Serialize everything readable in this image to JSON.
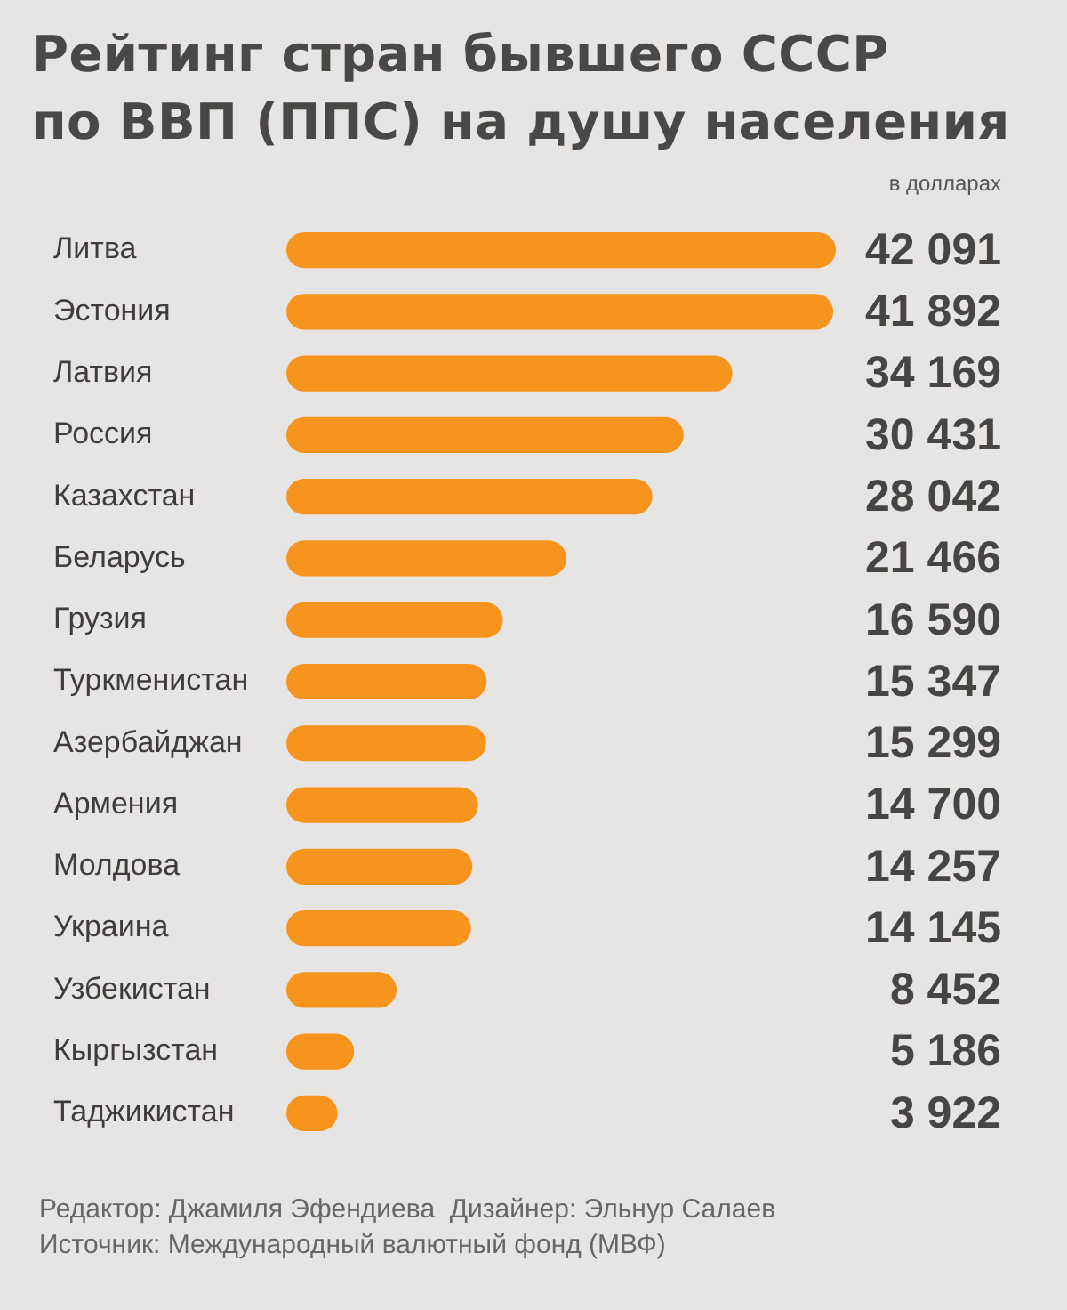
{
  "chart_data": {
    "type": "bar",
    "orientation": "horizontal",
    "title": "Рейтинг стран бывшего СССР\nпо ВВП (ППС) на душу населения",
    "subtitle": "в долларах",
    "categories": [
      "Литва",
      "Эстония",
      "Латвия",
      "Россия",
      "Казахстан",
      "Беларусь",
      "Грузия",
      "Туркменистан",
      "Азербайджан",
      "Армения",
      "Молдова",
      "Украина",
      "Узбекистан",
      "Кыргызстан",
      "Таджикистан"
    ],
    "values": [
      42091,
      41892,
      34169,
      30431,
      28042,
      21466,
      16590,
      15347,
      15299,
      14700,
      14257,
      14145,
      8452,
      5186,
      3922
    ],
    "value_labels": [
      "42 091",
      "41 892",
      "34 169",
      "30 431",
      "28 042",
      "21 466",
      "16 590",
      "15 347",
      "15 299",
      "14 700",
      "14 257",
      "14 145",
      "8 452",
      "5 186",
      "3 922"
    ],
    "color": "#f7941d",
    "tick_labels": "y",
    "annotations": [
      "Редактор: Джамиля Эфендиева  Дизайнер: Эльнур Салаев",
      "Источник: Международный валютный фонд (МВФ)"
    ]
  }
}
